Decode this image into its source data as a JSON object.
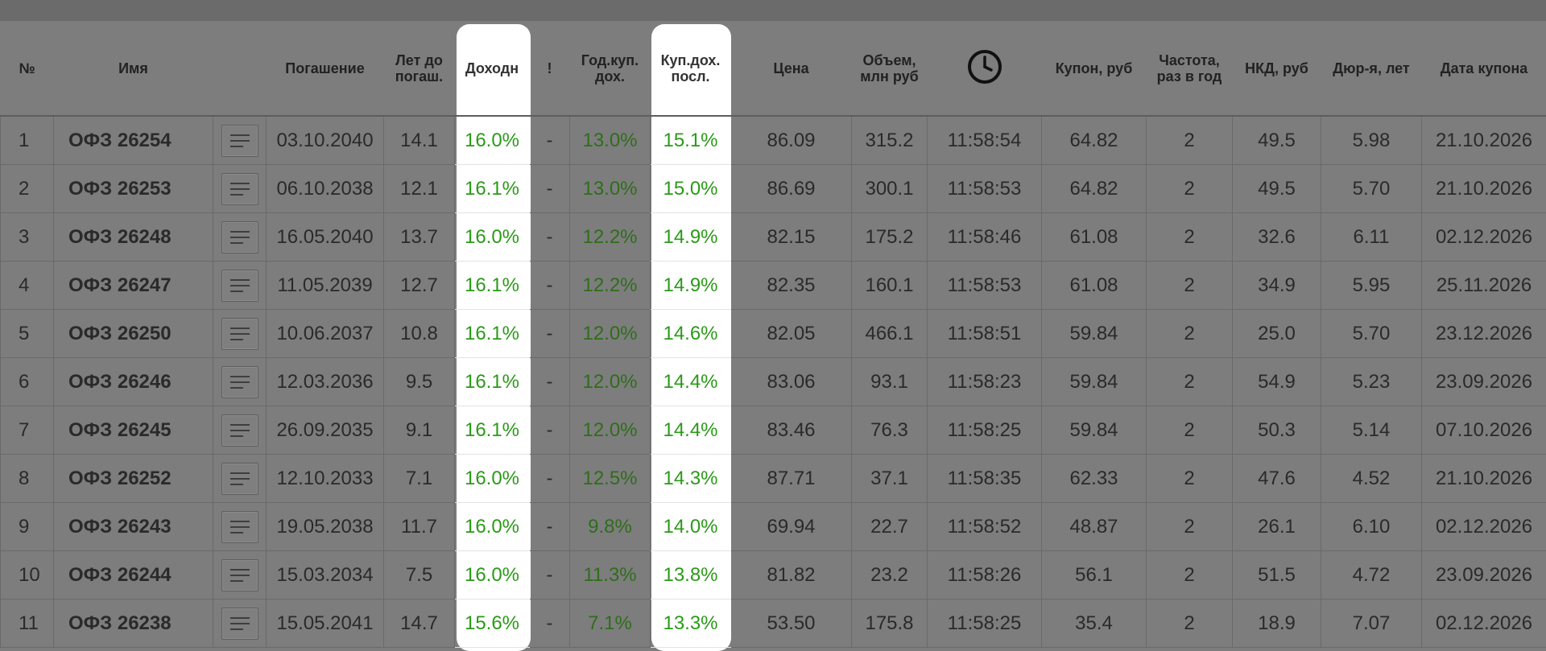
{
  "table": {
    "headers": {
      "num": "№",
      "name": "Имя",
      "maturity": "Погашение",
      "years_line1": "Лет до",
      "years_line2": "погаш.",
      "yield": "Доходн",
      "excl": "!",
      "annual_line1": "Год.куп.",
      "annual_line2": "дох.",
      "last_line1": "Куп.дох.",
      "last_line2": "посл.",
      "price": "Цена",
      "volume_line1": "Объем,",
      "volume_line2": "млн руб",
      "time_icon": "clock-icon",
      "coupon": "Купон, руб",
      "freq_line1": "Частота,",
      "freq_line2": "раз в год",
      "nkd": "НКД, руб",
      "duration": "Дюр-я, лет",
      "coupon_date": "Дата купона"
    },
    "rows": [
      {
        "num": "1",
        "name": "ОФЗ 26254",
        "maturity": "03.10.2040",
        "years": "14.1",
        "yield": "16.0%",
        "excl": "-",
        "annual": "13.0%",
        "last": "15.1%",
        "price": "86.09",
        "volume": "315.2",
        "time": "11:58:54",
        "coupon": "64.82",
        "freq": "2",
        "nkd": "49.5",
        "duration": "5.98",
        "coupon_date": "21.10.2026"
      },
      {
        "num": "2",
        "name": "ОФЗ 26253",
        "maturity": "06.10.2038",
        "years": "12.1",
        "yield": "16.1%",
        "excl": "-",
        "annual": "13.0%",
        "last": "15.0%",
        "price": "86.69",
        "volume": "300.1",
        "time": "11:58:53",
        "coupon": "64.82",
        "freq": "2",
        "nkd": "49.5",
        "duration": "5.70",
        "coupon_date": "21.10.2026"
      },
      {
        "num": "3",
        "name": "ОФЗ 26248",
        "maturity": "16.05.2040",
        "years": "13.7",
        "yield": "16.0%",
        "excl": "-",
        "annual": "12.2%",
        "last": "14.9%",
        "price": "82.15",
        "volume": "175.2",
        "time": "11:58:46",
        "coupon": "61.08",
        "freq": "2",
        "nkd": "32.6",
        "duration": "6.11",
        "coupon_date": "02.12.2026"
      },
      {
        "num": "4",
        "name": "ОФЗ 26247",
        "maturity": "11.05.2039",
        "years": "12.7",
        "yield": "16.1%",
        "excl": "-",
        "annual": "12.2%",
        "last": "14.9%",
        "price": "82.35",
        "volume": "160.1",
        "time": "11:58:53",
        "coupon": "61.08",
        "freq": "2",
        "nkd": "34.9",
        "duration": "5.95",
        "coupon_date": "25.11.2026"
      },
      {
        "num": "5",
        "name": "ОФЗ 26250",
        "maturity": "10.06.2037",
        "years": "10.8",
        "yield": "16.1%",
        "excl": "-",
        "annual": "12.0%",
        "last": "14.6%",
        "price": "82.05",
        "volume": "466.1",
        "time": "11:58:51",
        "coupon": "59.84",
        "freq": "2",
        "nkd": "25.0",
        "duration": "5.70",
        "coupon_date": "23.12.2026"
      },
      {
        "num": "6",
        "name": "ОФЗ 26246",
        "maturity": "12.03.2036",
        "years": "9.5",
        "yield": "16.1%",
        "excl": "-",
        "annual": "12.0%",
        "last": "14.4%",
        "price": "83.06",
        "volume": "93.1",
        "time": "11:58:23",
        "coupon": "59.84",
        "freq": "2",
        "nkd": "54.9",
        "duration": "5.23",
        "coupon_date": "23.09.2026"
      },
      {
        "num": "7",
        "name": "ОФЗ 26245",
        "maturity": "26.09.2035",
        "years": "9.1",
        "yield": "16.1%",
        "excl": "-",
        "annual": "12.0%",
        "last": "14.4%",
        "price": "83.46",
        "volume": "76.3",
        "time": "11:58:25",
        "coupon": "59.84",
        "freq": "2",
        "nkd": "50.3",
        "duration": "5.14",
        "coupon_date": "07.10.2026"
      },
      {
        "num": "8",
        "name": "ОФЗ 26252",
        "maturity": "12.10.2033",
        "years": "7.1",
        "yield": "16.0%",
        "excl": "-",
        "annual": "12.5%",
        "last": "14.3%",
        "price": "87.71",
        "volume": "37.1",
        "time": "11:58:35",
        "coupon": "62.33",
        "freq": "2",
        "nkd": "47.6",
        "duration": "4.52",
        "coupon_date": "21.10.2026"
      },
      {
        "num": "9",
        "name": "ОФЗ 26243",
        "maturity": "19.05.2038",
        "years": "11.7",
        "yield": "16.0%",
        "excl": "-",
        "annual": "9.8%",
        "last": "14.0%",
        "price": "69.94",
        "volume": "22.7",
        "time": "11:58:52",
        "coupon": "48.87",
        "freq": "2",
        "nkd": "26.1",
        "duration": "6.10",
        "coupon_date": "02.12.2026"
      },
      {
        "num": "10",
        "name": "ОФЗ 26244",
        "maturity": "15.03.2034",
        "years": "7.5",
        "yield": "16.0%",
        "excl": "-",
        "annual": "11.3%",
        "last": "13.8%",
        "price": "81.82",
        "volume": "23.2",
        "time": "11:58:26",
        "coupon": "56.1",
        "freq": "2",
        "nkd": "51.5",
        "duration": "4.72",
        "coupon_date": "23.09.2026"
      },
      {
        "num": "11",
        "name": "ОФЗ 26238",
        "maturity": "15.05.2041",
        "years": "14.7",
        "yield": "15.6%",
        "excl": "-",
        "annual": "7.1%",
        "last": "13.3%",
        "price": "53.50",
        "volume": "175.8",
        "time": "11:58:25",
        "coupon": "35.4",
        "freq": "2",
        "nkd": "18.9",
        "duration": "7.07",
        "coupon_date": "02.12.2026"
      }
    ]
  },
  "colors": {
    "background": "#7d7d7d",
    "highlight": "#ffffff",
    "positive_green": "#2a9a18",
    "dim_green": "#2f6d1b"
  }
}
